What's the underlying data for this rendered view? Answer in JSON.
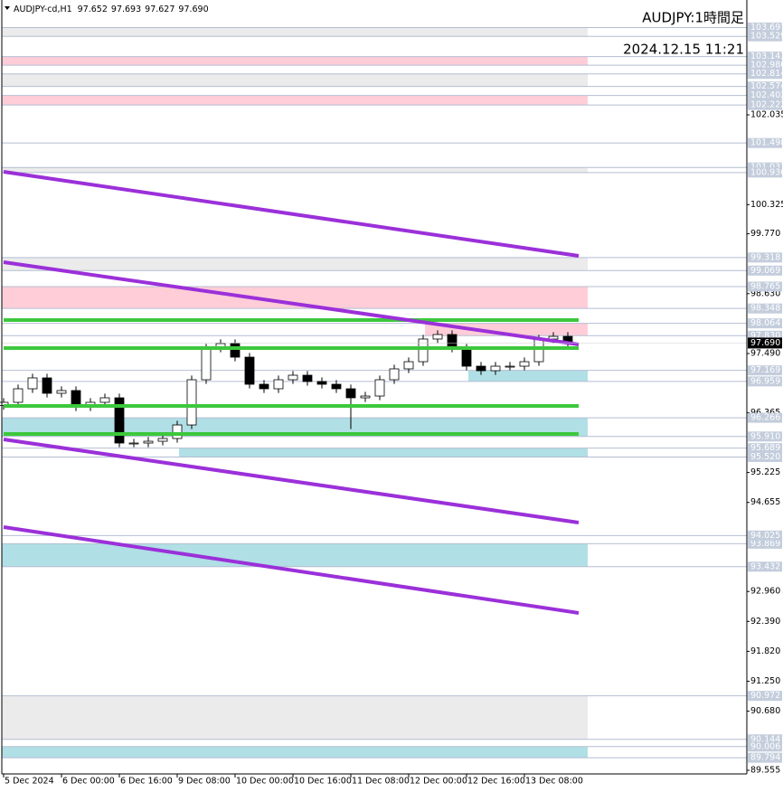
{
  "header": {
    "symbol": "AUDJPY-cd,H1",
    "ohlc": [
      97.652,
      97.693,
      97.627,
      {
        "value": 97.69,
        "label": "97.690"
      }
    ],
    "title": "AUDJPY:1時間足",
    "timestamp": "2024.12.15 11:21"
  },
  "chart_data": {
    "type": "candlestick",
    "x": [
      0,
      4,
      8,
      12,
      16,
      20,
      24,
      28,
      32,
      36,
      40,
      44,
      48,
      52,
      56,
      60,
      64,
      68,
      72,
      76,
      80,
      84,
      88,
      92,
      96,
      100,
      104,
      108,
      112,
      116,
      120,
      124,
      128,
      132,
      136,
      140,
      144,
      148,
      152,
      156
    ],
    "open": [
      96.5,
      96.561,
      96.819,
      97.026,
      96.733,
      96.785,
      96.475,
      96.561,
      96.647,
      95.786,
      95.786,
      95.82,
      95.872,
      96.13,
      96.991,
      97.594,
      97.68,
      97.421,
      96.905,
      96.819,
      96.991,
      97.077,
      96.957,
      96.905,
      96.819,
      96.647,
      96.681,
      96.991,
      97.198,
      97.335,
      97.766,
      97.852,
      97.594,
      97.249,
      97.163,
      97.249,
      97.249,
      97.335,
      97.766,
      97.817
    ],
    "high": [
      96.641,
      96.899,
      97.106,
      97.106,
      96.865,
      96.865,
      96.641,
      96.727,
      96.727,
      95.866,
      95.9,
      95.952,
      96.21,
      97.071,
      97.674,
      97.76,
      97.76,
      97.501,
      96.985,
      97.071,
      97.157,
      97.157,
      97.037,
      96.985,
      96.899,
      96.761,
      97.071,
      97.278,
      97.415,
      97.846,
      97.932,
      97.932,
      97.674,
      97.329,
      97.329,
      97.329,
      97.415,
      97.846,
      97.897,
      97.897
    ],
    "low": [
      96.42,
      96.481,
      96.739,
      96.653,
      96.653,
      96.395,
      96.395,
      96.481,
      95.706,
      95.706,
      95.706,
      95.74,
      95.792,
      96.05,
      96.911,
      97.514,
      97.341,
      96.825,
      96.739,
      96.739,
      96.911,
      96.877,
      96.825,
      96.739,
      96.05,
      96.567,
      96.601,
      96.911,
      97.118,
      97.255,
      97.686,
      97.514,
      97.169,
      97.083,
      97.083,
      97.169,
      97.169,
      97.255,
      97.686,
      97.61
    ],
    "close": [
      96.561,
      96.819,
      97.026,
      96.733,
      96.785,
      96.475,
      96.561,
      96.647,
      95.786,
      95.786,
      95.82,
      95.872,
      96.13,
      96.991,
      97.594,
      97.68,
      97.421,
      96.905,
      96.819,
      96.991,
      97.077,
      96.957,
      96.905,
      96.819,
      96.647,
      96.681,
      96.991,
      97.198,
      97.335,
      97.766,
      97.852,
      97.594,
      97.249,
      97.163,
      97.249,
      97.249,
      97.335,
      97.766,
      97.817,
      97.69
    ],
    "up_color": "#ffffff",
    "down_color": "#000000",
    "wick_color": "#000000",
    "xlim": [
      -0.5,
      205.5
    ],
    "ylim": [
      89.486,
      104.221
    ],
    "xticks": [
      {
        "value": 0,
        "label": "5 Dec 2024"
      },
      {
        "value": 16,
        "label": "6 Dec 00:00"
      },
      {
        "value": 32,
        "label": "6 Dec 16:00"
      },
      {
        "value": 48,
        "label": "9 Dec 08:00"
      },
      {
        "value": 64,
        "label": "10 Dec 00:00"
      },
      {
        "value": 80,
        "label": "10 Dec 16:00"
      },
      {
        "value": 96,
        "label": "11 Dec 08:00"
      },
      {
        "value": 112,
        "label": "12 Dec 00:00"
      },
      {
        "value": 128,
        "label": "12 Dec 16:00"
      },
      {
        "value": 144,
        "label": "13 Dec 08:00"
      }
    ],
    "yticks": [
      102.035,
      100.325,
      {
        "value": 99.77,
        "label": "99.770"
      },
      {
        "value": 98.63,
        "label": "98.630"
      },
      {
        "value": 97.49,
        "label": "97.490"
      },
      96.365,
      95.225,
      94.655,
      {
        "value": 92.96,
        "label": "92.960"
      },
      {
        "value": 92.39,
        "label": "92.390"
      },
      {
        "value": 91.82,
        "label": "91.820"
      },
      {
        "value": 91.25,
        "label": "91.250"
      },
      {
        "value": 90.68,
        "label": "90.680"
      },
      89.555
    ],
    "zones": [
      {
        "color": "#ebebeb",
        "x": [
          -0.5,
          161.5
        ],
        "values": [
          103.697,
          103.529
        ]
      },
      {
        "color": "#ffcdd8",
        "x": [
          -0.5,
          161.5
        ],
        "values": [
          103.143,
          {
            "value": 102.98,
            "label": "102.980"
          }
        ]
      },
      {
        "color": "#ebebeb",
        "x": [
          -0.5,
          161.5
        ],
        "values": [
          102.814,
          102.574
        ]
      },
      {
        "color": "#ffcdd8",
        "x": [
          -0.5,
          161.5
        ],
        "values": [
          102.402,
          102.222
        ]
      },
      {
        "color": "#ebebeb",
        "x": [
          -0.5,
          161.5
        ],
        "values": [
          101.033,
          100.936
        ]
      },
      {
        "color": "#ebebeb",
        "x": [
          -0.5,
          161.5
        ],
        "values": [
          99.318,
          99.069
        ]
      },
      {
        "color": "#ffcdd8",
        "x": [
          -0.5,
          161.5
        ],
        "values": [
          98.765,
          98.348
        ]
      },
      {
        "color": "#ffcdd8",
        "x": [
          116.5,
          161.5
        ],
        "values": [
          98.064,
          {
            "value": 97.83,
            "label": "97.830"
          }
        ]
      },
      {
        "color": "#b0dfe5",
        "x": [
          128.5,
          161.5
        ],
        "values": [
          97.169,
          96.959
        ]
      },
      {
        "color": "#b0dfe5",
        "x": [
          -0.5,
          161.5
        ],
        "values": [
          96.266,
          {
            "value": 95.91,
            "label": "95.910"
          }
        ]
      },
      {
        "color": "#b0dfe5",
        "x": [
          48.5,
          161.5
        ],
        "values": [
          95.689,
          {
            "value": 95.52,
            "label": "95.520"
          }
        ]
      },
      {
        "color": "#b0dfe5",
        "x": [
          -0.5,
          161.5
        ],
        "values": [
          93.869,
          93.432
        ]
      },
      {
        "color": "#ebebeb",
        "x": [
          -0.5,
          161.5
        ],
        "values": [
          90.972,
          90.144
        ]
      },
      {
        "color": "#b0dfe5",
        "x": [
          -0.5,
          161.5
        ],
        "values": [
          90.006,
          89.794
        ]
      }
    ],
    "levels": [
      101.498,
      94.025
    ],
    "trendlines": [
      {
        "color": "#9b30d9",
        "x": [
          0,
          159
        ],
        "values": [
          100.95,
          99.349
        ]
      },
      {
        "color": "#9b30d9",
        "x": [
          0,
          159
        ],
        "values": [
          99.229,
          97.663
        ]
      },
      {
        "color": "#9b30d9",
        "x": [
          0,
          159
        ],
        "values": [
          95.855,
          94.271
        ]
      },
      {
        "color": "#9b30d9",
        "x": [
          0,
          159
        ],
        "values": [
          94.185,
          92.55
        ]
      }
    ],
    "support_lines": [
      {
        "color": "#3cc83c",
        "x": [
          0,
          159
        ],
        "values": [
          98.127,
          98.127
        ]
      },
      {
        "color": "#3cc83c",
        "x": [
          0,
          159
        ],
        "values": [
          97.594,
          97.594
        ]
      },
      {
        "color": "#3cc83c",
        "x": [
          0,
          159
        ],
        "values": [
          96.492,
          96.492
        ]
      },
      {
        "color": "#3cc83c",
        "x": [
          0,
          159
        ],
        "values": [
          95.958,
          95.958
        ]
      }
    ],
    "current_price": {
      "value": 97.69,
      "label": "97.690"
    }
  }
}
